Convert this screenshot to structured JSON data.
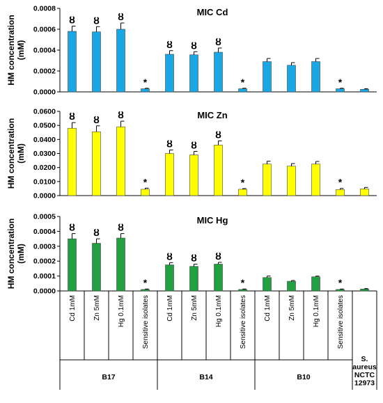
{
  "chart_data": [
    {
      "type": "bar",
      "title": "MIC Cd",
      "ylabel": "HM concentration (mM)",
      "ylim": [
        0,
        0.0008
      ],
      "yticks": [
        "0.0000",
        "0.0002",
        "0.0004",
        "0.0006",
        "0.0008"
      ],
      "color": "#1aa7e6",
      "values": [
        0.00058,
        0.000575,
        0.0006,
        3e-05,
        0.00036,
        0.000355,
        0.00038,
        3e-05,
        0.00029,
        0.000255,
        0.00029,
        3e-05,
        2.5e-05
      ],
      "errors": [
        5e-05,
        5e-05,
        6e-05,
        5e-06,
        3.5e-05,
        3e-05,
        4e-05,
        5e-06,
        3e-05,
        2.5e-05,
        3e-05,
        5e-06,
        5e-06
      ],
      "markers": [
        "ȣ",
        "ȣ",
        "ȣ",
        "*",
        "ȣ",
        "ȣ",
        "ȣ",
        "*",
        "",
        "",
        "",
        "*",
        ""
      ]
    },
    {
      "type": "bar",
      "title": "MIC Zn",
      "ylabel": "HM concentration (mM)",
      "ylim": [
        0,
        0.06
      ],
      "yticks": [
        "0.0000",
        "0.0100",
        "0.0200",
        "0.0300",
        "0.0400",
        "0.0500",
        "0.0600"
      ],
      "color": "#ffff00",
      "values": [
        0.048,
        0.0455,
        0.049,
        0.0045,
        0.03,
        0.029,
        0.036,
        0.0045,
        0.0225,
        0.021,
        0.0225,
        0.0043,
        0.0048
      ],
      "errors": [
        0.004,
        0.0042,
        0.004,
        0.0008,
        0.0025,
        0.0025,
        0.003,
        0.0005,
        0.002,
        0.0018,
        0.0018,
        0.0008,
        0.001
      ],
      "markers": [
        "ȣ",
        "ȣ",
        "ȣ",
        "*",
        "ȣ",
        "ȣ",
        "ȣ",
        "*",
        "",
        "",
        "",
        "*",
        ""
      ]
    },
    {
      "type": "bar",
      "title": "MIC Hg",
      "ylabel": "HM concentration (mM)",
      "ylim": [
        0,
        0.0005
      ],
      "yticks": [
        "0.0000",
        "0.0001",
        "0.0002",
        "0.0003",
        "0.0004",
        "0.0005"
      ],
      "color": "#20a040",
      "values": [
        0.00035,
        0.00032,
        0.000355,
        1e-05,
        0.000175,
        0.000165,
        0.00018,
        1e-05,
        9e-05,
        6.5e-05,
        9.5e-05,
        1e-05,
        1.3e-05
      ],
      "errors": [
        3.5e-05,
        3e-05,
        3e-05,
        3e-06,
        1.5e-05,
        1.5e-05,
        1.2e-05,
        3e-06,
        1e-05,
        5e-06,
        5e-06,
        3e-06,
        3e-06
      ],
      "markers": [
        "ȣ",
        "ȣ",
        "ȣ",
        "*",
        "ȣ",
        "ȣ",
        "ȣ",
        "*",
        "",
        "",
        "",
        "*",
        ""
      ]
    }
  ],
  "categories": [
    "Cd 1mM",
    "Zn 5mM",
    "Hg 0.1mM",
    "Sensitive isolates",
    "Cd 1mM",
    "Zn 5mM",
    "Hg 0.1mM",
    "Sensitive isolates",
    "Cd 1mM",
    "Zn 5mM",
    "Hg 0.1mM",
    "Sensitive isolates",
    ""
  ],
  "groups": [
    {
      "label": "B17",
      "lines": [],
      "start": 0,
      "end": 4
    },
    {
      "label": "B14",
      "lines": [],
      "start": 4,
      "end": 8
    },
    {
      "label": "B10",
      "lines": [],
      "start": 8,
      "end": 12
    },
    {
      "label": "",
      "lines": [
        "S.",
        "aureus",
        "NCTC",
        "12973"
      ],
      "start": 12,
      "end": 13
    }
  ]
}
